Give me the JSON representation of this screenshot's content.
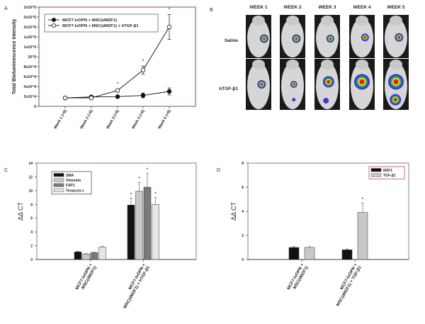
{
  "panel_labels": {
    "a": "A",
    "b": "B",
    "c": "C",
    "d": "D"
  },
  "colors": {
    "axis": "#222222",
    "legend_border_a": "#4a6d8c",
    "legend_border_d": "#c0504d",
    "black_bar": "#111111",
    "light_bar": "#c8c8c8",
    "dark_bar": "#7a7a7a",
    "pale_bar": "#e6e6e6"
  },
  "chart_data": [
    {
      "id": "A",
      "type": "line",
      "title": "",
      "xlabel": "",
      "ylabel": "Total Bioluminescence Intensity",
      "ylim": [
        0,
        200000
      ],
      "yticks": [
        0,
        20000,
        40000,
        60000,
        80000,
        100000,
        120000,
        140000,
        160000,
        180000,
        200000
      ],
      "ytick_labels": [
        "0",
        "2x10^4",
        "4x10^4",
        "6x10^4",
        "8x10^4",
        "10^5",
        "1x10^5",
        "1x10^5",
        "2x10^5",
        "2x10^5",
        "2x10^5"
      ],
      "categories": [
        "Week 1 (+6)",
        "Week 2 (+6)",
        "Week 3 (+6)",
        "Week 4 (+6)",
        "Week 5 (+6)"
      ],
      "legend_position": "top-left",
      "series": [
        {
          "name": "MCF7-lvOPN + MSC(dMZF1)",
          "marker": "filled-circle",
          "values": [
            17000,
            19000,
            19500,
            22000,
            30000
          ],
          "errors": [
            1000,
            1500,
            1500,
            5000,
            7000
          ]
        },
        {
          "name": "MCF7-lvOPN + MSC(dMZF1) + hTGF-β1",
          "marker": "open-circle",
          "values": [
            17000,
            17000,
            32000,
            73000,
            160000
          ],
          "errors": [
            1000,
            1500,
            3000,
            8000,
            25000
          ]
        }
      ],
      "significance": [
        "",
        "",
        "*",
        "*",
        "*"
      ]
    },
    {
      "id": "C",
      "type": "bar",
      "ylabel": "ΔΔ CT",
      "ylim": [
        0,
        14
      ],
      "yticks": [
        0,
        2,
        4,
        6,
        8,
        10,
        12,
        14
      ],
      "categories": [
        "MCF7-lvOPN + MSC(dMZF1)",
        "MCF7-lvOPN + MSC(dMZF1) + hTGF-β1"
      ],
      "category_lines": [
        [
          "MCF7-lvOPN +",
          "MSC(dMZF1)"
        ],
        [
          "MCF7-lvOPN +",
          "MSC(dMZF1) + hTGF-β1"
        ]
      ],
      "legend_position": "top-left",
      "series": [
        {
          "name": "SMA",
          "color": "#111111",
          "values": [
            1.1,
            7.9
          ],
          "errors": [
            0.1,
            1.0
          ]
        },
        {
          "name": "Vimentin",
          "color": "#c8c8c8",
          "values": [
            0.8,
            9.9
          ],
          "errors": [
            0.05,
            1.3
          ]
        },
        {
          "name": "FSP1",
          "color": "#7a7a7a",
          "values": [
            1.0,
            10.5
          ],
          "errors": [
            0.05,
            2.0
          ]
        },
        {
          "name": "Tenascin-c",
          "color": "#e6e6e6",
          "values": [
            1.8,
            8.0
          ],
          "errors": [
            0.1,
            1.0
          ]
        }
      ],
      "significance": [
        [
          "",
          "",
          "",
          ""
        ],
        [
          "*",
          "*",
          "*",
          "*"
        ]
      ]
    },
    {
      "id": "D",
      "type": "bar",
      "ylabel": "ΔΔ CT",
      "ylim": [
        0,
        8
      ],
      "yticks": [
        0,
        2,
        4,
        6,
        8
      ],
      "categories": [
        "MCF7-lvOPN + MSC(dMZF1)",
        "MCF7-lvOPN + MSC(dMZF1) + TGF-β1"
      ],
      "category_lines": [
        [
          "MCF7-lvOPN +",
          "MSC(dMZF1)"
        ],
        [
          "MCF7-lvOPN +",
          "MSC(dMZF1) + TGF-β1"
        ]
      ],
      "legend_position": "top-right",
      "series": [
        {
          "name": "MZF1",
          "color": "#111111",
          "values": [
            1.0,
            0.8
          ],
          "errors": [
            0.08,
            0.08
          ]
        },
        {
          "name": "TGF-β1",
          "color": "#c8c8c8",
          "values": [
            1.0,
            3.9
          ],
          "errors": [
            0.08,
            0.8
          ]
        }
      ],
      "significance": [
        [
          "",
          ""
        ],
        [
          "",
          "*"
        ]
      ]
    }
  ],
  "panel_b": {
    "weeks": [
      "WEEK 1",
      "WEEK 2",
      "WEEK 3",
      "WEEK 4",
      "WEEK 5"
    ],
    "rows": [
      "Saline",
      "hTGF-β1"
    ]
  }
}
